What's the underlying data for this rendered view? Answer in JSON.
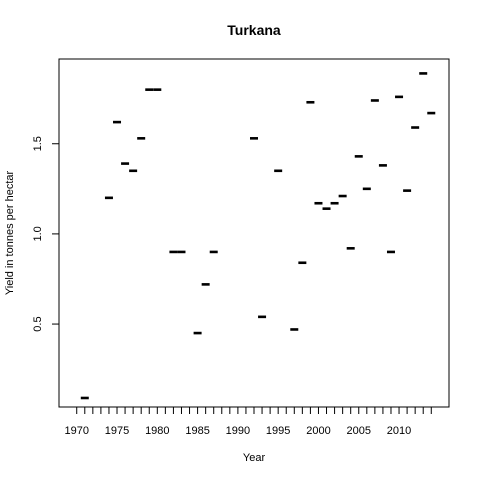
{
  "chart_data": {
    "type": "scatter",
    "title": "Turkana",
    "xlabel": "Year",
    "ylabel": "Yield in tonnes per hectar",
    "xlim": [
      1967.8,
      2016.2
    ],
    "ylim": [
      0.04,
      1.97
    ],
    "x_ticks": [
      1970,
      1975,
      1980,
      1985,
      1990,
      1995,
      2000,
      2005,
      2010
    ],
    "y_ticks": [
      0.5,
      1.0,
      1.5
    ],
    "x_minor_ticks": [
      1970,
      1971,
      1972,
      1973,
      1974,
      1975,
      1976,
      1977,
      1978,
      1979,
      1980,
      1981,
      1982,
      1983,
      1984,
      1985,
      1986,
      1987,
      1988,
      1989,
      1990,
      1991,
      1992,
      1993,
      1994,
      1995,
      1996,
      1997,
      1998,
      1999,
      2000,
      2001,
      2002,
      2003,
      2004,
      2005,
      2006,
      2007,
      2008,
      2009,
      2010,
      2011,
      2012,
      2013,
      2014
    ],
    "grid": false,
    "legend": "none",
    "x": [
      1971,
      1974,
      1975,
      1976,
      1977,
      1978,
      1979,
      1980,
      1982,
      1983,
      1985,
      1986,
      1987,
      1992,
      1993,
      1995,
      1997,
      1998,
      1999,
      2000,
      2001,
      2002,
      2003,
      2004,
      2005,
      2006,
      2007,
      2008,
      2009,
      2010,
      2011,
      2012,
      2013,
      2014
    ],
    "y": [
      0.09,
      1.2,
      1.62,
      1.39,
      1.35,
      1.53,
      1.8,
      1.8,
      0.9,
      0.9,
      0.45,
      0.72,
      0.9,
      1.53,
      0.54,
      1.35,
      0.47,
      0.84,
      1.73,
      1.17,
      1.14,
      1.17,
      1.21,
      0.92,
      1.43,
      1.25,
      1.74,
      1.38,
      0.9,
      1.76,
      1.24,
      1.59,
      1.89,
      1.67
    ]
  }
}
